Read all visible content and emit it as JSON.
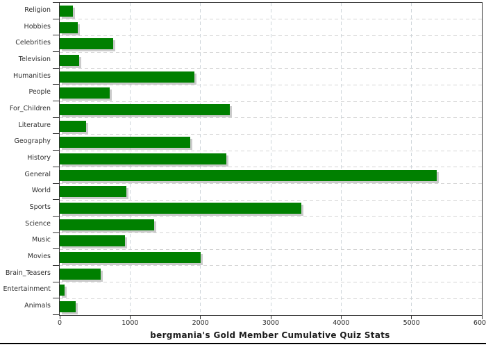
{
  "chart_data": {
    "type": "bar",
    "orientation": "horizontal",
    "title": "bergmania's Gold Member Cumulative Quiz Stats",
    "categories": [
      "Religion",
      "Hobbies",
      "Celebrities",
      "Television",
      "Humanities",
      "People",
      "For_Children",
      "Literature",
      "Geography",
      "History",
      "General",
      "World",
      "Sports",
      "Science",
      "Music",
      "Movies",
      "Brain_Teasers",
      "Entertainment",
      "Animals"
    ],
    "values": [
      190,
      260,
      760,
      280,
      1910,
      710,
      2415,
      370,
      1850,
      2370,
      5360,
      950,
      3430,
      1340,
      930,
      2000,
      580,
      70,
      230
    ],
    "xlabel": "",
    "ylabel": "",
    "xlim": [
      0,
      6000
    ],
    "x_ticks": [
      0,
      1000,
      2000,
      3000,
      4000,
      5000,
      6000
    ],
    "x_tick_labels": [
      "0",
      "1000",
      "2000",
      "3000",
      "4000",
      "5000",
      "6000"
    ],
    "grid": "dashed",
    "legend": "none",
    "bar_color": "#008000",
    "bar_shadow_color": "#a8a8a8",
    "axis_color": "#2f2f2f",
    "grid_color": "#d4d4d4",
    "label_color": "#2e2e2e",
    "background_color": "#ffffff"
  }
}
